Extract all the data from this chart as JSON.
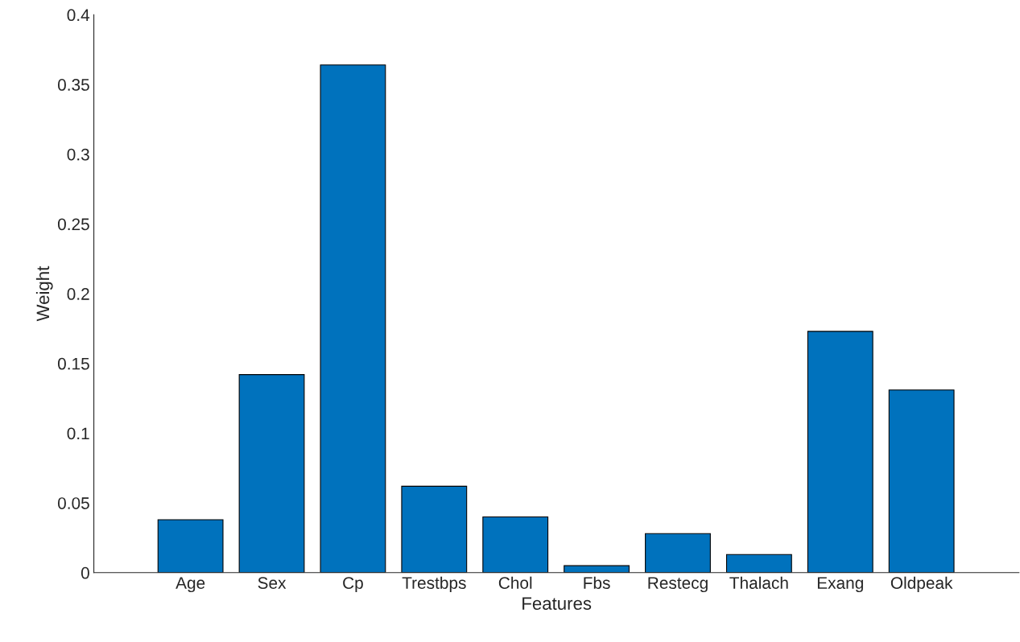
{
  "chart_data": {
    "type": "bar",
    "xlabel": "Features",
    "ylabel": "Weight",
    "categories": [
      "Age",
      "Sex",
      "Cp",
      "Trestbps",
      "Chol",
      "Fbs",
      "Restecg",
      "Thalach",
      "Exang",
      "Oldpeak"
    ],
    "values": [
      0.038,
      0.142,
      0.364,
      0.062,
      0.04,
      0.005,
      0.028,
      0.013,
      0.173,
      0.131
    ],
    "color": "#0072bd",
    "ylim": [
      0,
      0.4
    ],
    "yticks": [
      0,
      0.05,
      0.1,
      0.15,
      0.2,
      0.25,
      0.3,
      0.35,
      0.4
    ],
    "grid": false,
    "legend": false
  }
}
